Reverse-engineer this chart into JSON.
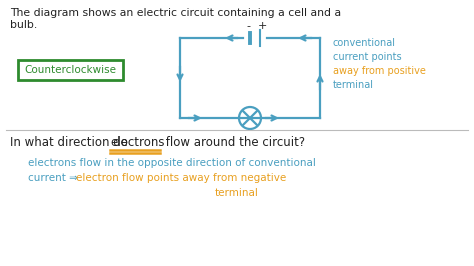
{
  "bg_color": "#ffffff",
  "text_black": "#222222",
  "text_blue": "#4a9fc0",
  "text_orange": "#e8a020",
  "text_green": "#2e8b2e",
  "circuit_color": "#4a9fc0",
  "box_color": "#2e8b2e",
  "title_line1": "The diagram shows an electric circuit containing a cell and a",
  "title_line2": "bulb.",
  "counterclockwise_label": "Counterclockwise",
  "conv_lines": [
    "conventional",
    "current points",
    "away from positive",
    "terminal"
  ],
  "question_pre": "In what direction do ",
  "question_mid": "electrons",
  "question_post": " flow around the circuit?",
  "ans_line1": "electrons flow in the opposite direction of conventional",
  "ans_line2_blue": "current ⇒ ",
  "ans_line2_orange": "electron flow points away from negative",
  "ans_line3": "terminal"
}
